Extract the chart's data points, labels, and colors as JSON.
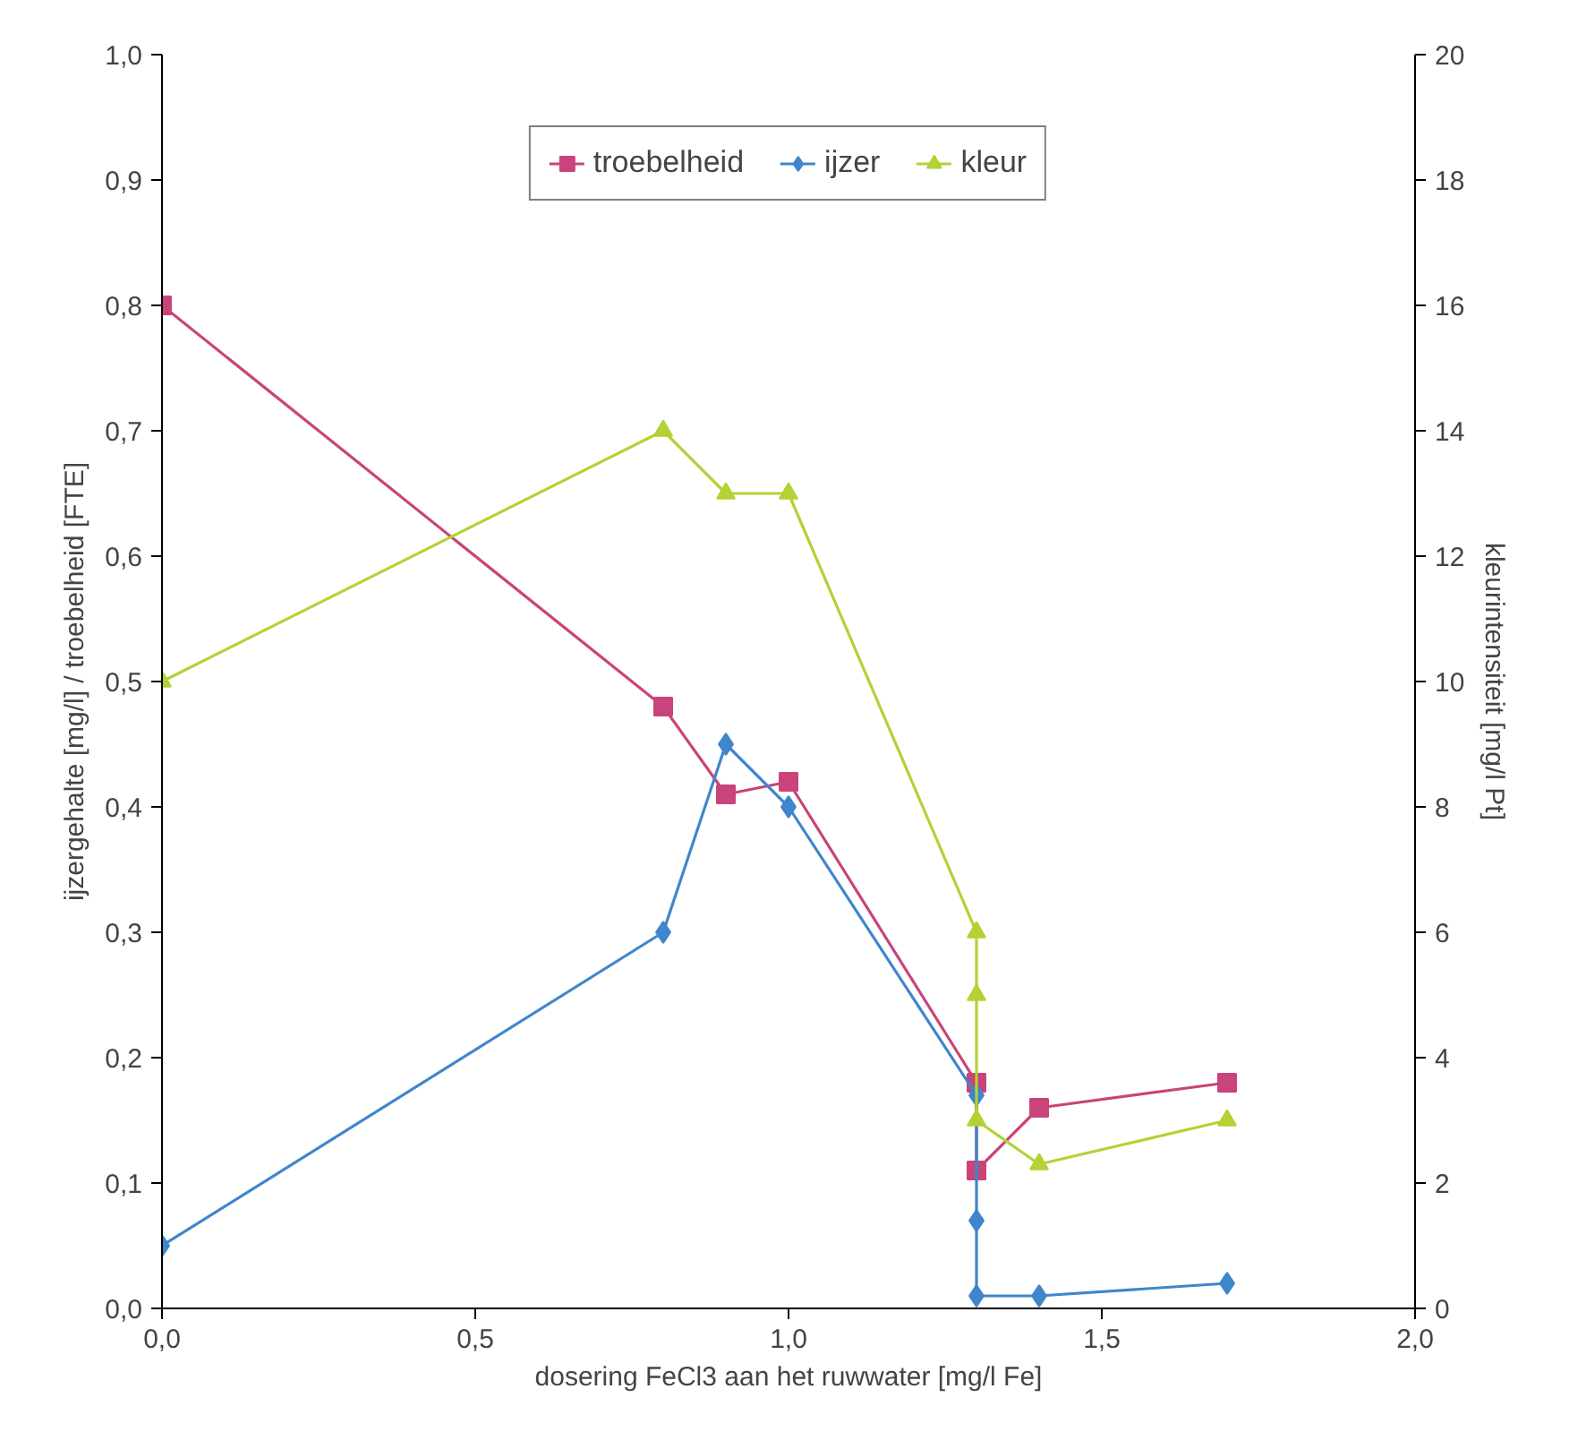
{
  "chart_data": {
    "type": "line",
    "xlabel": "dosering FeCl3 aan het ruwwater [mg/l Fe]",
    "ylabel": "ijzergehalte [mg/l] / troebelheid [FTE]",
    "y2label": "kleurintensiteit [mg/l Pt]",
    "series": [
      {
        "name": "troebelheid",
        "color": "#c8447a",
        "marker": "square",
        "x": [
          0,
          0.8,
          0.9,
          1.0,
          1.3,
          1.3,
          1.4,
          1.7
        ],
        "values": [
          0.8,
          0.48,
          0.41,
          0.42,
          0.18,
          0.11,
          0.16,
          0.18
        ]
      },
      {
        "name": "ijzer",
        "color": "#3f86cc",
        "marker": "diamond",
        "x": [
          0,
          0.8,
          0.9,
          1.0,
          1.3,
          1.3,
          1.3,
          1.4,
          1.7
        ],
        "values": [
          0.05,
          0.3,
          0.45,
          0.4,
          0.17,
          0.07,
          0.01,
          0.01,
          0.02
        ]
      },
      {
        "name": "kleur",
        "color": "#b2d235",
        "marker": "triangle",
        "axis": "y2",
        "x": [
          0,
          0.8,
          0.9,
          1.0,
          1.3,
          1.3,
          1.3,
          1.4,
          1.7
        ],
        "values": [
          10,
          14,
          13,
          13,
          6,
          5,
          3,
          2.3,
          3
        ]
      }
    ],
    "xlim": [
      0,
      2.0
    ],
    "xticks": [
      {
        "value": 0,
        "label": "0,0"
      },
      {
        "value": 0.5,
        "label": "0,5"
      },
      {
        "value": 1.0,
        "label": "1,0"
      },
      {
        "value": 1.5,
        "label": "1,5"
      },
      {
        "value": 2.0,
        "label": "2,0"
      }
    ],
    "ylim": [
      0,
      1.0
    ],
    "yticks": [
      {
        "value": 0,
        "label": "0,0"
      },
      {
        "value": 0.1,
        "label": "0,1"
      },
      {
        "value": 0.2,
        "label": "0,2"
      },
      {
        "value": 0.3,
        "label": "0,3"
      },
      {
        "value": 0.4,
        "label": "0,4"
      },
      {
        "value": 0.5,
        "label": "0,5"
      },
      {
        "value": 0.6,
        "label": "0,6"
      },
      {
        "value": 0.7,
        "label": "0,7"
      },
      {
        "value": 0.8,
        "label": "0,8"
      },
      {
        "value": 0.9,
        "label": "0,9"
      },
      {
        "value": 1.0,
        "label": "1,0"
      }
    ],
    "y2lim": [
      0,
      20
    ],
    "y2ticks": [
      0,
      2,
      4,
      6,
      8,
      10,
      12,
      14,
      16,
      18,
      20
    ],
    "legend": "top",
    "grid": false
  }
}
